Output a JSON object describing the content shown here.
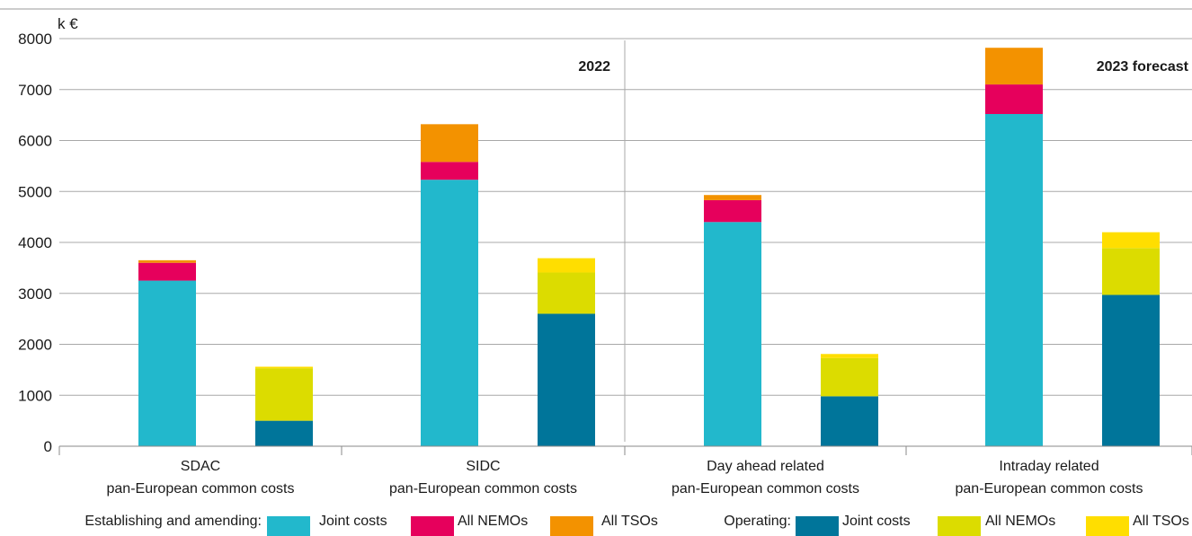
{
  "chart_data": {
    "type": "bar",
    "stacked": true,
    "unit": "k €",
    "ylim": [
      0,
      8000
    ],
    "yticks": [
      0,
      1000,
      2000,
      3000,
      4000,
      5000,
      6000,
      7000,
      8000
    ],
    "grid": true,
    "panels": [
      {
        "label": "2022",
        "groups": [
          0,
          1
        ]
      },
      {
        "label": "2023 forecast",
        "groups": [
          2,
          3
        ]
      }
    ],
    "categories": [
      {
        "line1": "SDAC",
        "line2": "pan-European common costs"
      },
      {
        "line1": "SIDC",
        "line2": "pan-European common costs"
      },
      {
        "line1": "Day ahead related",
        "line2": "pan-European common costs"
      },
      {
        "line1": "Intraday related",
        "line2": "pan-European common costs"
      }
    ],
    "legend_groups": [
      {
        "label": "Establishing and amending:",
        "series": [
          0,
          1,
          2
        ]
      },
      {
        "label": "Operating:",
        "series": [
          3,
          4,
          5
        ]
      }
    ],
    "series": [
      {
        "name": "Joint costs",
        "group": "establishing",
        "color": "#22b8cc",
        "values": [
          3250,
          5230,
          4400,
          6520
        ]
      },
      {
        "name": "All NEMOs",
        "group": "establishing",
        "color": "#e6005c",
        "values": [
          350,
          350,
          430,
          580
        ]
      },
      {
        "name": "All TSOs",
        "group": "establishing",
        "color": "#f39200",
        "values": [
          50,
          740,
          100,
          720
        ]
      },
      {
        "name": "Joint costs",
        "group": "operating",
        "color": "#00759a",
        "values": [
          500,
          2600,
          980,
          2970
        ]
      },
      {
        "name": "All NEMOs",
        "group": "operating",
        "color": "#dcdc00",
        "values": [
          1030,
          810,
          750,
          920
        ]
      },
      {
        "name": "All TSOs",
        "group": "operating",
        "color": "#ffde00",
        "values": [
          30,
          280,
          80,
          310
        ]
      }
    ]
  }
}
